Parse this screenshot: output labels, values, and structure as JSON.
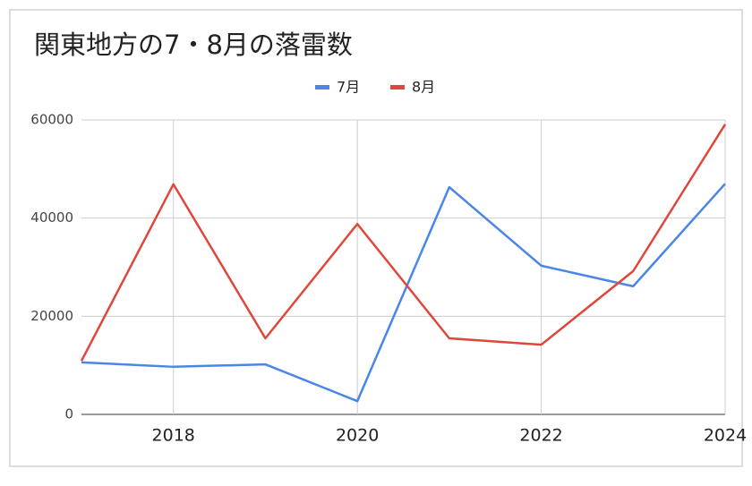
{
  "chart_data": {
    "type": "line",
    "title": "関東地方の7・8月の落雷数",
    "x": [
      2017,
      2018,
      2019,
      2020,
      2021,
      2022,
      2023,
      2024
    ],
    "series": [
      {
        "name": "7月",
        "color": "#4a86e8",
        "values": [
          10600,
          9700,
          10200,
          2700,
          46300,
          30300,
          26100,
          47000
        ]
      },
      {
        "name": "8月",
        "color": "#e0463b",
        "values": [
          10900,
          46900,
          15500,
          38800,
          15500,
          14200,
          29200,
          59100
        ]
      }
    ],
    "xlim": [
      2017,
      2024
    ],
    "xticks": [
      2018,
      2020,
      2022,
      2024
    ],
    "ylim": [
      0,
      60000
    ],
    "yticks": [
      0,
      20000,
      40000,
      60000
    ],
    "grid": true,
    "legend": "top"
  }
}
